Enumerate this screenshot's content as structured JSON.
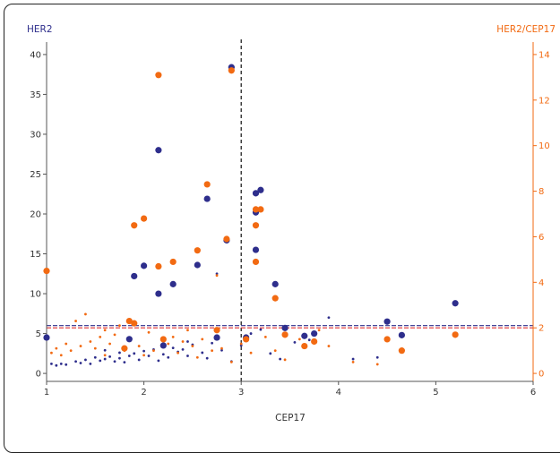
{
  "chart_data": {
    "type": "scatter",
    "xlabel": "CEP17",
    "ylabel_left": "HER2",
    "ylabel_right": "HER2/CEP17",
    "xlim": [
      1,
      6
    ],
    "ylim_left": [
      -1,
      41
    ],
    "ylim_right": [
      -0.35,
      14.35
    ],
    "x_ticks": [
      "1",
      "2",
      "3",
      "4",
      "5",
      "6"
    ],
    "y_ticks_left": [
      "0",
      "5",
      "10",
      "15",
      "20",
      "25",
      "30",
      "35",
      "40"
    ],
    "y_ticks_right": [
      "0",
      "2",
      "4",
      "6",
      "8",
      "10",
      "12",
      "14"
    ],
    "colors": {
      "her2": "#2e2e8c",
      "ratio": "#f26a12",
      "axis_right": "#f26a12",
      "axis_left": "#2e2e8c"
    },
    "reference_lines": {
      "vertical_x": 3,
      "her2_threshold": 6,
      "ratio_threshold": 2
    },
    "large_points": {
      "her2": [
        [
          1,
          4.5
        ],
        [
          1.85,
          4.3
        ],
        [
          1.9,
          12.2
        ],
        [
          2,
          13.5
        ],
        [
          2.15,
          28
        ],
        [
          2.15,
          10
        ],
        [
          2.2,
          3.5
        ],
        [
          2.3,
          11.2
        ],
        [
          2.55,
          13.6
        ],
        [
          2.65,
          21.9
        ],
        [
          2.75,
          4.5
        ],
        [
          2.85,
          16.7
        ],
        [
          2.9,
          38.4
        ],
        [
          3.05,
          4.5
        ],
        [
          3.15,
          22.6
        ],
        [
          3.15,
          20.2
        ],
        [
          3.15,
          15.5
        ],
        [
          3.2,
          23
        ],
        [
          3.35,
          11.2
        ],
        [
          3.45,
          5.7
        ],
        [
          3.65,
          4.7
        ],
        [
          3.75,
          5
        ],
        [
          4.5,
          6.5
        ],
        [
          4.65,
          4.8
        ],
        [
          5.2,
          8.8
        ]
      ],
      "ratio": [
        [
          1,
          4.5
        ],
        [
          1.8,
          1.1
        ],
        [
          1.85,
          2.3
        ],
        [
          1.9,
          2.2
        ],
        [
          1.9,
          6.5
        ],
        [
          2,
          6.8
        ],
        [
          2.15,
          13.1
        ],
        [
          2.15,
          4.7
        ],
        [
          2.2,
          1.5
        ],
        [
          2.3,
          4.9
        ],
        [
          2.55,
          5.4
        ],
        [
          2.65,
          8.3
        ],
        [
          2.75,
          1.9
        ],
        [
          2.85,
          5.9
        ],
        [
          2.9,
          13.3
        ],
        [
          3.05,
          1.5
        ],
        [
          3.15,
          7.2
        ],
        [
          3.15,
          6.5
        ],
        [
          3.15,
          4.9
        ],
        [
          3.2,
          7.2
        ],
        [
          3.35,
          3.3
        ],
        [
          3.45,
          1.7
        ],
        [
          3.65,
          1.2
        ],
        [
          3.75,
          1.4
        ],
        [
          4.5,
          1.5
        ],
        [
          4.65,
          1.0
        ],
        [
          5.2,
          1.7
        ]
      ]
    },
    "small_points": {
      "her2": [
        [
          1.05,
          1.2
        ],
        [
          1.1,
          1.0
        ],
        [
          1.15,
          1.2
        ],
        [
          1.2,
          1.1
        ],
        [
          1.3,
          1.5
        ],
        [
          1.35,
          1.3
        ],
        [
          1.4,
          1.7
        ],
        [
          1.45,
          1.2
        ],
        [
          1.5,
          2.0
        ],
        [
          1.55,
          1.6
        ],
        [
          1.6,
          1.8
        ],
        [
          1.65,
          2.1
        ],
        [
          1.7,
          1.5
        ],
        [
          1.75,
          1.9
        ],
        [
          1.8,
          1.4
        ],
        [
          1.85,
          2.2
        ],
        [
          1.9,
          2.5
        ],
        [
          1.95,
          1.7
        ],
        [
          2.0,
          2.8
        ],
        [
          2.05,
          2.2
        ],
        [
          2.1,
          3.0
        ],
        [
          2.2,
          2.4
        ],
        [
          2.25,
          2.0
        ],
        [
          2.3,
          3.2
        ],
        [
          2.35,
          2.7
        ],
        [
          2.4,
          3.0
        ],
        [
          2.45,
          2.2
        ],
        [
          2.5,
          3.6
        ],
        [
          2.6,
          2.6
        ],
        [
          2.7,
          3.8
        ],
        [
          2.75,
          12.5
        ],
        [
          2.8,
          2.9
        ],
        [
          2.9,
          1.5
        ],
        [
          3.0,
          3.5
        ],
        [
          3.1,
          5.0
        ],
        [
          3.2,
          5.5
        ],
        [
          3.3,
          2.5
        ],
        [
          3.4,
          1.8
        ],
        [
          3.55,
          3.9
        ],
        [
          3.7,
          4.2
        ],
        [
          3.9,
          7.0
        ],
        [
          4.15,
          1.8
        ],
        [
          4.4,
          2.0
        ],
        [
          1.6,
          2.9
        ],
        [
          1.75,
          2.6
        ],
        [
          2.15,
          1.6
        ],
        [
          2.45,
          4.0
        ],
        [
          2.65,
          1.9
        ]
      ],
      "ratio": [
        [
          1.05,
          0.9
        ],
        [
          1.1,
          1.1
        ],
        [
          1.15,
          0.8
        ],
        [
          1.2,
          1.3
        ],
        [
          1.25,
          1.0
        ],
        [
          1.3,
          2.3
        ],
        [
          1.35,
          1.2
        ],
        [
          1.4,
          2.6
        ],
        [
          1.45,
          1.4
        ],
        [
          1.5,
          1.1
        ],
        [
          1.55,
          1.6
        ],
        [
          1.6,
          0.8
        ],
        [
          1.65,
          1.3
        ],
        [
          1.7,
          1.7
        ],
        [
          1.75,
          2.1
        ],
        [
          1.8,
          1.0
        ],
        [
          1.85,
          1.5
        ],
        [
          1.95,
          1.2
        ],
        [
          2.05,
          1.8
        ],
        [
          2.1,
          1.0
        ],
        [
          2.25,
          1.3
        ],
        [
          2.3,
          1.6
        ],
        [
          2.35,
          0.9
        ],
        [
          2.4,
          1.4
        ],
        [
          2.5,
          1.2
        ],
        [
          2.55,
          0.7
        ],
        [
          2.6,
          1.5
        ],
        [
          2.75,
          4.3
        ],
        [
          2.8,
          1.1
        ],
        [
          2.9,
          0.5
        ],
        [
          3.0,
          1.3
        ],
        [
          3.1,
          0.9
        ],
        [
          3.25,
          1.6
        ],
        [
          3.35,
          1.0
        ],
        [
          3.45,
          0.6
        ],
        [
          3.6,
          1.5
        ],
        [
          3.8,
          1.9
        ],
        [
          3.9,
          1.2
        ],
        [
          4.15,
          0.5
        ],
        [
          4.4,
          0.4
        ],
        [
          1.6,
          1.9
        ],
        [
          2.0,
          0.8
        ],
        [
          2.45,
          1.9
        ],
        [
          2.7,
          1.0
        ]
      ]
    }
  }
}
